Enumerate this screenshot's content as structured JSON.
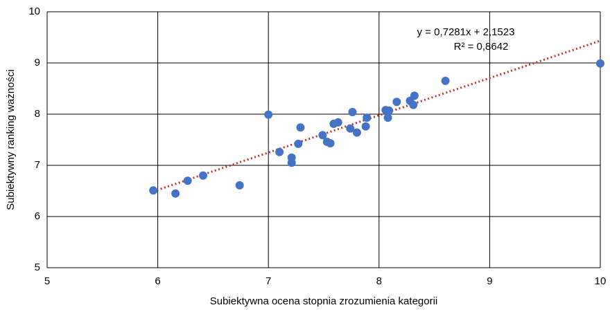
{
  "chart_data": {
    "type": "scatter",
    "x_label": "Subiektywna ocena stopnia zrozumienia kategorii",
    "y_label": "Subiektywny ranking ważności",
    "series": [
      {
        "name": "Kategorie",
        "color": "#4472c4",
        "x": [
          5.96,
          6.16,
          6.27,
          6.41,
          6.74,
          7.0,
          7.1,
          7.21,
          7.21,
          7.27,
          7.29,
          7.49,
          7.53,
          7.56,
          7.59,
          7.63,
          7.74,
          7.76,
          7.8,
          7.88,
          7.89,
          8.06,
          8.08,
          8.09,
          8.16,
          8.28,
          8.32,
          8.31,
          8.6,
          10.0
        ],
        "values": [
          6.51,
          6.45,
          6.7,
          6.8,
          6.61,
          7.99,
          7.26,
          7.15,
          7.05,
          7.42,
          7.74,
          7.59,
          7.46,
          7.43,
          7.81,
          7.84,
          7.72,
          8.04,
          7.64,
          7.76,
          7.93,
          8.08,
          7.93,
          8.07,
          8.24,
          8.26,
          8.36,
          8.18,
          8.65,
          8.99
        ]
      }
    ],
    "trendline": {
      "slope": 0.7281,
      "intercept": 2.1523,
      "xrange": [
        5.96,
        10
      ],
      "color": "#c0302a"
    },
    "annotations": [
      "y = 0,7281x + 2,1523",
      "R² = 0,8642"
    ],
    "xlim": [
      5,
      10
    ],
    "xticks": [
      5,
      6,
      7,
      8,
      9,
      10
    ],
    "ylim": [
      5,
      10
    ],
    "yticks": [
      5,
      6,
      7,
      8,
      9,
      10
    ],
    "grid": true
  }
}
